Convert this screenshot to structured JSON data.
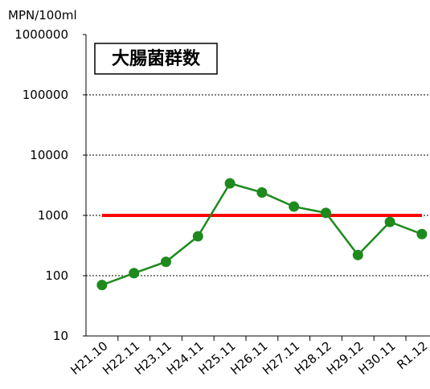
{
  "chart_data": {
    "type": "line",
    "title": "大腸菌群数",
    "y_axis_label": "MPN/100ml",
    "categories": [
      "H21.10",
      "H22.11",
      "H23.11",
      "H24.11",
      "H25.11",
      "H26.11",
      "H27.11",
      "H28.12",
      "H29.12",
      "H30.11",
      "R1.12"
    ],
    "series": [
      {
        "color": "#1e8a1e",
        "values": [
          70,
          110,
          170,
          450,
          3400,
          2400,
          1400,
          1100,
          220,
          780,
          490
        ]
      }
    ],
    "threshold": 1000,
    "threshold_color": "#ff0000",
    "log_y": true,
    "ylim": [
      10,
      1000000
    ],
    "yticks": [
      10,
      100,
      1000,
      10000,
      100000,
      1000000
    ],
    "grid": true
  }
}
